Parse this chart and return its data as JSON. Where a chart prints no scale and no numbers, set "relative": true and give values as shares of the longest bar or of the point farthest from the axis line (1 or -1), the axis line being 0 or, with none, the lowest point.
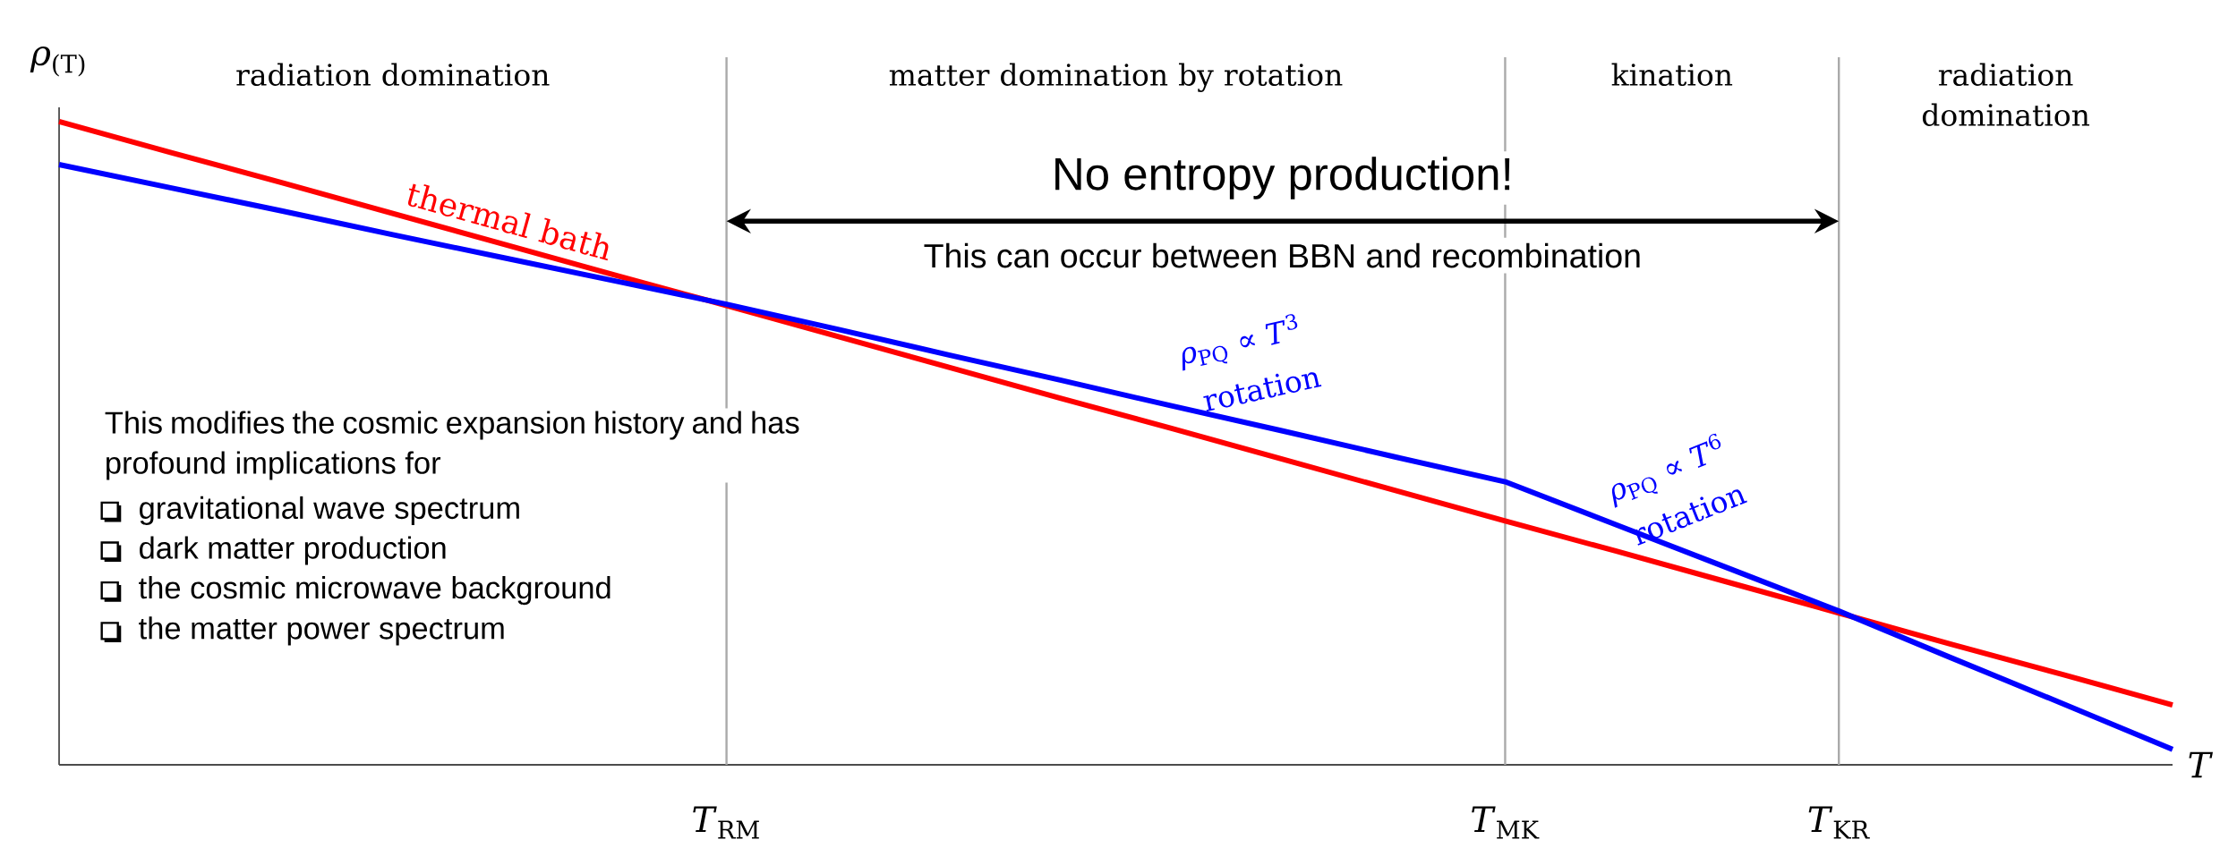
{
  "chart_data": {
    "type": "line",
    "relative": true,
    "marker": "none",
    "categories": [
      null,
      null,
      null,
      null,
      null,
      null,
      "*T*$_{RM}$",
      null,
      null,
      null,
      null,
      null,
      null,
      "*T*$_{MK}$",
      null,
      null,
      "*T*$_{KR}$",
      null,
      null,
      null
    ],
    "tick_labels": "x",
    "xlabel": "*T*",
    "ylabel": "*ρ*$_{(T)}$",
    "grid": "x",
    "series": [
      {
        "name": "thermal bath",
        "color": "#ff0000",
        "values": [
          1.0,
          0.952,
          0.905,
          0.857,
          0.809,
          0.761,
          0.714,
          0.666,
          0.618,
          0.57,
          0.523,
          0.475,
          0.427,
          0.379,
          0.332,
          0.284,
          0.236,
          0.188,
          0.141,
          0.093
        ]
      },
      {
        "color": "#0000ff",
        "values": [
          0.933,
          0.897,
          0.861,
          0.824,
          0.788,
          0.752,
          0.716,
          0.677,
          0.637,
          0.598,
          0.558,
          0.519,
          0.479,
          0.44,
          0.373,
          0.306,
          0.239,
          0.167,
          0.096,
          0.024
        ]
      }
    ],
    "annotations": [
      "radiation domination",
      "matter domination by rotation",
      "kination",
      "radiation domination",
      "No entropy production!",
      "This can occur between BBN and recombination",
      "This modifies the cosmic expansion history and has profound implications for",
      "gravitational wave spectrum",
      "dark matter production",
      "the cosmic microwave background",
      "the matter power spectrum",
      "*ρ*$_{PQ}$ ∝ *T*$^{3}$",
      "rotation",
      "*ρ*$_{PQ}$ ∝ *T*$^{6}$",
      "rotation"
    ]
  }
}
